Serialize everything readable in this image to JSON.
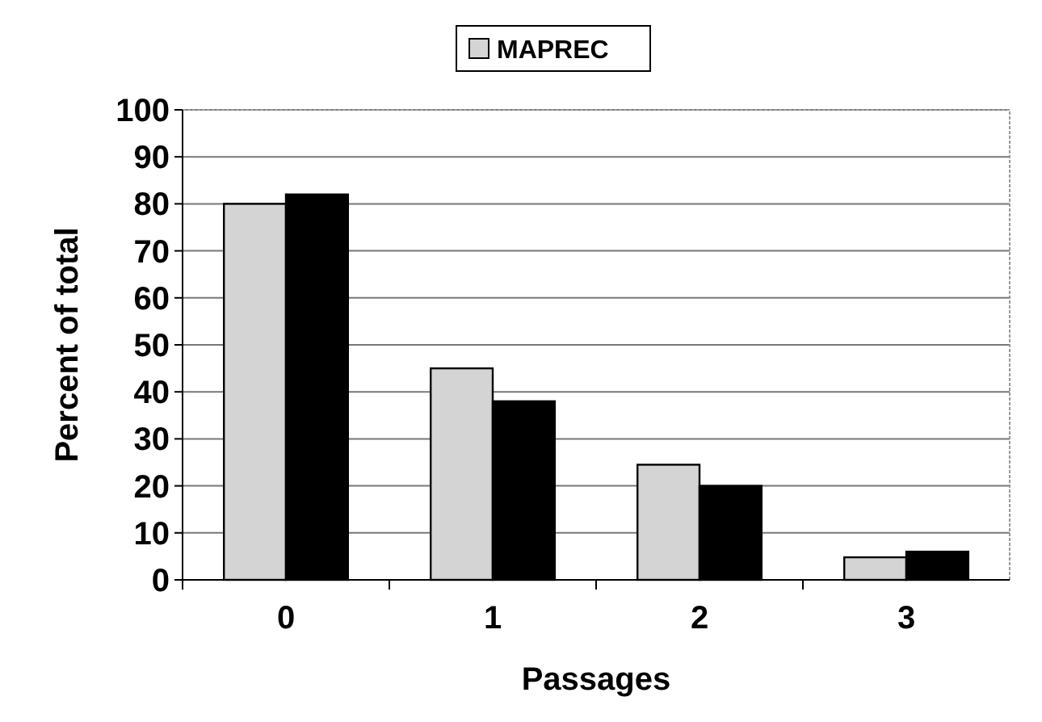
{
  "chart_data": {
    "type": "bar",
    "xlabel": "Passages",
    "ylabel": "Percent of total",
    "categories": [
      "0",
      "1",
      "2",
      "3"
    ],
    "series": [
      {
        "name": "MAPREC",
        "color": "#d4d4d4",
        "values": [
          80,
          45,
          24.5,
          4.8
        ]
      },
      {
        "color": "#000000",
        "values": [
          82,
          38,
          20,
          6
        ]
      }
    ],
    "ylim": [
      0,
      100
    ],
    "yticks": [
      0,
      10,
      20,
      30,
      40,
      50,
      60,
      70,
      80,
      90,
      100
    ],
    "grid": "y",
    "legend": "top"
  }
}
